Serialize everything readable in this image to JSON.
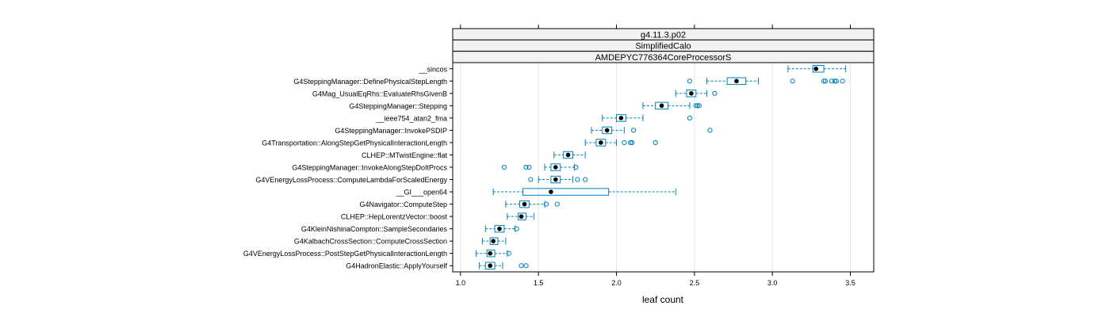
{
  "chart_data": {
    "type": "boxplot",
    "title": "",
    "strips": [
      "g4.11.3.p02",
      "SimplifiedCalo",
      "AMDEPYC776364CoreProcessorS"
    ],
    "xlabel": "leaf count",
    "ylabel": "",
    "xlim": [
      0.95,
      3.65
    ],
    "xticks": [
      1.0,
      1.5,
      2.0,
      2.5,
      3.0,
      3.5
    ],
    "xtick_labels": [
      "1.0",
      "1.5",
      "2.0",
      "2.5",
      "3.0",
      "3.5"
    ],
    "grid": "vertical",
    "colors": {
      "box": "#0080c0",
      "median": "#000000",
      "strip": "#f2f2f2",
      "grid": "#e6e6e6",
      "frame": "#000000"
    },
    "series": [
      {
        "name": "__sincos",
        "lower": 3.1,
        "q1": 3.26,
        "median": 3.28,
        "q3": 3.33,
        "upper": 3.47,
        "outliers": []
      },
      {
        "name": "G4SteppingManager::DefinePhysicalStepLength",
        "lower": 2.58,
        "q1": 2.71,
        "median": 2.77,
        "q3": 2.83,
        "upper": 2.91,
        "outliers": [
          2.47,
          3.13,
          3.33,
          3.34,
          3.38,
          3.4,
          3.41,
          3.45
        ]
      },
      {
        "name": "G4Mag_UsualEqRhs::EvaluateRhsGivenB",
        "lower": 2.38,
        "q1": 2.45,
        "median": 2.48,
        "q3": 2.51,
        "upper": 2.58,
        "outliers": [
          2.63
        ]
      },
      {
        "name": "G4SteppingManager::Stepping",
        "lower": 2.17,
        "q1": 2.25,
        "median": 2.29,
        "q3": 2.33,
        "upper": 2.47,
        "outliers": [
          2.51,
          2.52,
          2.53
        ]
      },
      {
        "name": "__ieee754_atan2_fma",
        "lower": 1.91,
        "q1": 2.0,
        "median": 2.03,
        "q3": 2.06,
        "upper": 2.17,
        "outliers": [
          2.47
        ]
      },
      {
        "name": "G4SteppingManager::InvokePSDIP",
        "lower": 1.84,
        "q1": 1.91,
        "median": 1.94,
        "q3": 1.97,
        "upper": 2.05,
        "outliers": [
          2.11,
          2.6
        ]
      },
      {
        "name": "G4Transportation::AlongStepGetPhysicalInteractionLength",
        "lower": 1.8,
        "q1": 1.87,
        "median": 1.9,
        "q3": 1.93,
        "upper": 2.0,
        "outliers": [
          2.05,
          2.09,
          2.1,
          2.25
        ]
      },
      {
        "name": "CLHEP::MTwistEngine::flat",
        "lower": 1.6,
        "q1": 1.66,
        "median": 1.69,
        "q3": 1.72,
        "upper": 1.8,
        "outliers": []
      },
      {
        "name": "G4SteppingManager::InvokeAlongStepDoItProcs",
        "lower": 1.54,
        "q1": 1.58,
        "median": 1.61,
        "q3": 1.64,
        "upper": 1.73,
        "outliers": [
          1.28,
          1.42,
          1.44,
          1.74
        ]
      },
      {
        "name": "G4VEnergyLossProcess::ComputeLambdaForScaledEnergy",
        "lower": 1.5,
        "q1": 1.58,
        "median": 1.61,
        "q3": 1.64,
        "upper": 1.72,
        "outliers": [
          1.45,
          1.75,
          1.8
        ]
      },
      {
        "name": "__GI___open64",
        "lower": 1.21,
        "q1": 1.4,
        "median": 1.58,
        "q3": 1.95,
        "upper": 2.38,
        "outliers": []
      },
      {
        "name": "G4Navigator::ComputeStep",
        "lower": 1.29,
        "q1": 1.38,
        "median": 1.41,
        "q3": 1.44,
        "upper": 1.54,
        "outliers": [
          1.55,
          1.62
        ]
      },
      {
        "name": "CLHEP::HepLorentzVector::boost",
        "lower": 1.3,
        "q1": 1.37,
        "median": 1.39,
        "q3": 1.42,
        "upper": 1.47,
        "outliers": []
      },
      {
        "name": "G4KleinNishinaCompton::SampleSecondaries",
        "lower": 1.16,
        "q1": 1.22,
        "median": 1.25,
        "q3": 1.28,
        "upper": 1.35,
        "outliers": [
          1.36
        ]
      },
      {
        "name": "G4KalbachCrossSection::ComputeCrossSection",
        "lower": 1.14,
        "q1": 1.19,
        "median": 1.21,
        "q3": 1.24,
        "upper": 1.29,
        "outliers": []
      },
      {
        "name": "G4VEnergyLossProcess::PostStepGetPhysicalInteractionLength",
        "lower": 1.1,
        "q1": 1.17,
        "median": 1.19,
        "q3": 1.22,
        "upper": 1.3,
        "outliers": [
          1.31
        ]
      },
      {
        "name": "G4HadronElastic::ApplyYourself",
        "lower": 1.12,
        "q1": 1.16,
        "median": 1.19,
        "q3": 1.22,
        "upper": 1.27,
        "outliers": [
          1.39,
          1.42
        ]
      }
    ]
  }
}
